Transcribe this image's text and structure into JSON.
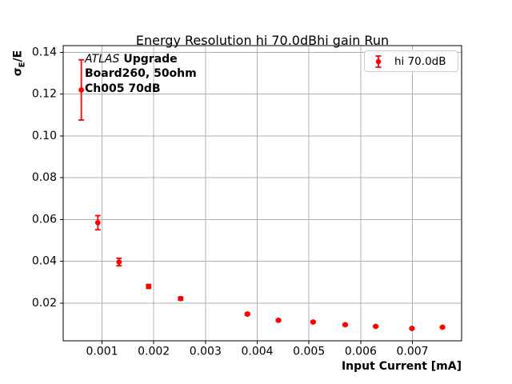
{
  "title": "Energy Resolution hi 70.0dBhi gain Run",
  "axes": {
    "xlabel": "Input Current [mA]",
    "ylabel_sigma": "σ",
    "ylabel_sub": "E",
    "ylabel_rest": "/E"
  },
  "annotation": {
    "line1_italic": "ATLAS",
    "line1_bold": "Upgrade",
    "line2": "Board260, 50ohm",
    "line3": "Ch005 70dB"
  },
  "legend": {
    "label": "hi 70.0dB",
    "position": "upper right"
  },
  "colors": {
    "series": "#ff0000",
    "grid": "#b0b0b0",
    "frame": "#000000",
    "tick_text": "#000000",
    "background": "#ffffff",
    "legend_border": "#cccccc"
  },
  "chart_data": {
    "type": "scatter",
    "title": "Energy Resolution hi 70.0dBhi gain Run",
    "xlabel": "Input Current [mA]",
    "ylabel": "σ_E/E",
    "grid": true,
    "legend_position": "upper right",
    "xlim": [
      0.00025,
      0.00795
    ],
    "ylim": [
      0.002,
      0.1432
    ],
    "xticks": [
      0.001,
      0.002,
      0.003,
      0.004,
      0.005,
      0.006,
      0.007
    ],
    "xtick_labels": [
      "0.001",
      "0.002",
      "0.003",
      "0.004",
      "0.005",
      "0.006",
      "0.007"
    ],
    "yticks": [
      0.02,
      0.04,
      0.06,
      0.08,
      0.1,
      0.12,
      0.14
    ],
    "ytick_labels": [
      "0.02",
      "0.04",
      "0.06",
      "0.08",
      "0.10",
      "0.12",
      "0.14"
    ],
    "series": [
      {
        "name": "hi 70.0dB",
        "color": "#ff0000",
        "marker": "circle-errorbar",
        "x": [
          0.0006,
          0.00092,
          0.00133,
          0.0019,
          0.00252,
          0.00381,
          0.00441,
          0.00508,
          0.0057,
          0.00629,
          0.00699,
          0.00758
        ],
        "y": [
          0.122,
          0.0585,
          0.0397,
          0.028,
          0.0222,
          0.0148,
          0.0118,
          0.011,
          0.0097,
          0.0089,
          0.0079,
          0.0085
        ],
        "yerr": [
          0.0144,
          0.0034,
          0.0018,
          0.0009,
          0.0007,
          0.0005,
          0.0004,
          0.0004,
          0.0003,
          0.0003,
          0.0003,
          0.0003
        ]
      }
    ]
  }
}
